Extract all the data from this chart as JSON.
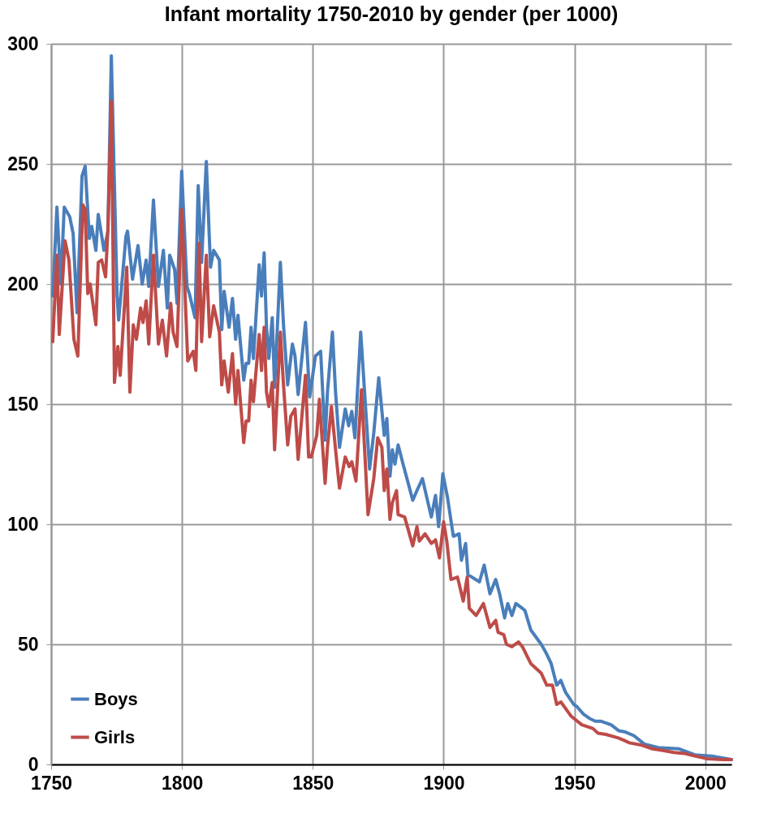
{
  "chart_data": {
    "type": "line",
    "title": "Infant mortality 1750-2010 by gender (per 1000)",
    "xlim": [
      1750,
      2010
    ],
    "xticks": [
      1750,
      1800,
      1850,
      1900,
      1950,
      2000
    ],
    "ylim": [
      0,
      300
    ],
    "yticks": [
      0,
      50,
      100,
      150,
      200,
      250,
      300
    ],
    "grid": true,
    "legend": "bottom left",
    "series": [
      {
        "name": "Boys",
        "color": "#4a7ebb",
        "x": [
          1750.6,
          1752.2,
          1753.7,
          1755,
          1757.1,
          1758.4,
          1759.9,
          1761.8,
          1763,
          1764.6,
          1765.5,
          1767.1,
          1768,
          1770.2,
          1771.7,
          1773,
          1775.2,
          1775.8,
          1778.6,
          1779.2,
          1781.1,
          1783.2,
          1784.8,
          1786.3,
          1787.3,
          1789.1,
          1791,
          1792.9,
          1794.4,
          1795.3,
          1797.2,
          1798.1,
          1799.9,
          1801.9,
          1802.8,
          1805,
          1806.2,
          1807.5,
          1809.3,
          1810.9,
          1812.1,
          1814.3,
          1815.2,
          1816.1,
          1818,
          1819.3,
          1820.5,
          1821.4,
          1823.6,
          1824.5,
          1825.5,
          1826.4,
          1827.3,
          1829.5,
          1830.4,
          1831.4,
          1832.3,
          1833.2,
          1834.5,
          1835.4,
          1837.6,
          1838.8,
          1840.4,
          1842.2,
          1843.2,
          1844.4,
          1847.2,
          1848.8,
          1851,
          1853,
          1854.7,
          1855.6,
          1857.5,
          1858.7,
          1860.2,
          1862.4,
          1863.7,
          1864.9,
          1866.1,
          1868.3,
          1871.7,
          1873.3,
          1875.2,
          1877.3,
          1878.3,
          1879.5,
          1880.4,
          1881.4,
          1882.6,
          1884.5,
          1888.2,
          1889.8,
          1891.9,
          1893.8,
          1895.3,
          1896.9,
          1898.1,
          1899.7,
          1901.5,
          1903.7,
          1905.9,
          1906.8,
          1908.4,
          1909.3,
          1913.7,
          1915.5,
          1917.7,
          1919.9,
          1921.4,
          1923.3,
          1924.5,
          1926.1,
          1927.6,
          1930.1,
          1931.1,
          1933.3,
          1937.3,
          1938.9,
          1941.1,
          1943.2,
          1944.8,
          1946.6,
          1949.7,
          1951,
          1953.4,
          1956,
          1958,
          1960,
          1964,
          1967,
          1969.5,
          1972.7,
          1976.7,
          1982,
          1990,
          1996,
          2002.5,
          2010
        ],
        "values": [
          195,
          232,
          200,
          232,
          228,
          221,
          188,
          245,
          249,
          219,
          224,
          214,
          229,
          214,
          222,
          295,
          195,
          185,
          220,
          222,
          202,
          216,
          200,
          210,
          199,
          235,
          199,
          214,
          190,
          212,
          206,
          192,
          247,
          199,
          196,
          186,
          241,
          209,
          251,
          207,
          214,
          210,
          181,
          197,
          182,
          194,
          177,
          187,
          160,
          167,
          167,
          182,
          169,
          208,
          195,
          213,
          182,
          169,
          186,
          157,
          209,
          183,
          158,
          175,
          170,
          154,
          184,
          153,
          170,
          172,
          135,
          155,
          180,
          155,
          132,
          148,
          141,
          147,
          136,
          180,
          123,
          138,
          161,
          137,
          144,
          120,
          131,
          125,
          133,
          125,
          110,
          114,
          119,
          110,
          103,
          112,
          99,
          121,
          111,
          95,
          96,
          85,
          92,
          79,
          76,
          83,
          71,
          77,
          71,
          61,
          67,
          62,
          67,
          65,
          64,
          56,
          50,
          47,
          42,
          33,
          35,
          30,
          25,
          24,
          21,
          19,
          18,
          18,
          16.5,
          14,
          13.5,
          12,
          8.5,
          7,
          6.5,
          4,
          3.5,
          2
        ]
      },
      {
        "name": "Girls",
        "color": "#be4b48",
        "x": [
          1750.6,
          1752.2,
          1753.1,
          1755.3,
          1756.8,
          1758.7,
          1760.2,
          1762.1,
          1763,
          1764,
          1764.9,
          1767.1,
          1768,
          1769.3,
          1770.8,
          1771.7,
          1773,
          1774.2,
          1775.5,
          1776.4,
          1778.9,
          1780.1,
          1781.4,
          1782.6,
          1784.2,
          1785.1,
          1786.3,
          1787.3,
          1789.1,
          1791,
          1792.5,
          1794.1,
          1795.7,
          1796.6,
          1798.1,
          1799.9,
          1802.2,
          1804.3,
          1805.3,
          1806.5,
          1807.5,
          1809.3,
          1810.6,
          1812.1,
          1814.3,
          1815.2,
          1816.1,
          1817.7,
          1819.3,
          1820.5,
          1821.4,
          1823.6,
          1824.5,
          1825.5,
          1826.4,
          1827.3,
          1829.5,
          1830.4,
          1831.4,
          1832.3,
          1833.2,
          1834.5,
          1835.4,
          1837.6,
          1838.8,
          1840.4,
          1841.6,
          1843.2,
          1844.4,
          1847.2,
          1848.4,
          1849.4,
          1851.5,
          1852.5,
          1854.7,
          1855.6,
          1857.1,
          1858.7,
          1860.2,
          1862.4,
          1863.9,
          1864.9,
          1866.5,
          1868.6,
          1871.1,
          1873.3,
          1874.8,
          1876.4,
          1877.3,
          1878.3,
          1879.5,
          1880.4,
          1882,
          1882.6,
          1885.1,
          1888.2,
          1889.8,
          1890.7,
          1892.9,
          1895.3,
          1896.9,
          1898.4,
          1900,
          1901.2,
          1902.8,
          1905.3,
          1907.5,
          1909,
          1909.8,
          1912.4,
          1915.2,
          1917.7,
          1919.9,
          1920.8,
          1923,
          1924,
          1926.1,
          1928.6,
          1930.1,
          1933.3,
          1937.3,
          1939.4,
          1941.6,
          1943.2,
          1944.8,
          1948.8,
          1952.8,
          1957,
          1959,
          1962,
          1966.8,
          1969,
          1971,
          1975.8,
          1979.8,
          1983.8,
          1988,
          1992,
          1996,
          2000.6,
          2006.8,
          2010
        ],
        "values": [
          176,
          212,
          179,
          218,
          210,
          177,
          170,
          233,
          231,
          196,
          200,
          183,
          209,
          210,
          203,
          223,
          276,
          159,
          174,
          162,
          207,
          155,
          183,
          177,
          190,
          184,
          193,
          175,
          212,
          175,
          185,
          170,
          192,
          180,
          174,
          231,
          168,
          172,
          164,
          217,
          176,
          212,
          178,
          191,
          180,
          158,
          168,
          155,
          171,
          150,
          164,
          134,
          143,
          143,
          160,
          151,
          179,
          164,
          182,
          155,
          149,
          159,
          131,
          180,
          158,
          133,
          145,
          148,
          127,
          162,
          128,
          128,
          137,
          152,
          117,
          132,
          149,
          131,
          115,
          128,
          124,
          126,
          118,
          156,
          104,
          119,
          136,
          132,
          114,
          123,
          102,
          109,
          114,
          104,
          103,
          91,
          99,
          93,
          96,
          92,
          93.5,
          86,
          101,
          93,
          77,
          78,
          68,
          78,
          65,
          62,
          67,
          57,
          60,
          55,
          54,
          50,
          49,
          51,
          49,
          42,
          38,
          33,
          33,
          25,
          26,
          20,
          16.5,
          15,
          13,
          12.5,
          11,
          10,
          9,
          8,
          6.5,
          5.8,
          5,
          4.6,
          3.5,
          2.4,
          2,
          2
        ]
      }
    ]
  }
}
